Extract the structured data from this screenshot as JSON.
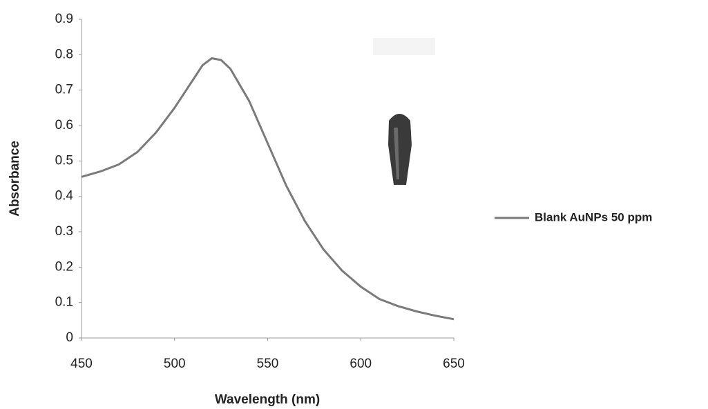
{
  "chart_data": {
    "type": "line",
    "x_label": "Wavelength (nm)",
    "y_label": "Absorbance",
    "x": [
      450,
      460,
      470,
      480,
      490,
      500,
      510,
      515,
      520,
      525,
      530,
      540,
      550,
      560,
      570,
      580,
      590,
      600,
      610,
      620,
      630,
      640,
      650
    ],
    "series": [
      {
        "name": "Blank AuNPs 50 ppm",
        "color": "#7a7a7a",
        "values": [
          0.455,
          0.47,
          0.49,
          0.525,
          0.58,
          0.65,
          0.73,
          0.77,
          0.79,
          0.785,
          0.76,
          0.67,
          0.55,
          0.43,
          0.33,
          0.25,
          0.19,
          0.145,
          0.11,
          0.09,
          0.075,
          0.063,
          0.053
        ]
      }
    ],
    "xlim": [
      450,
      650
    ],
    "xticks": [
      450,
      500,
      550,
      600,
      650
    ],
    "ylim": [
      0,
      0.9
    ],
    "yticks": [
      0,
      0.1,
      0.2,
      0.3,
      0.4,
      0.5,
      0.6,
      0.7,
      0.8,
      0.9
    ],
    "grid": false,
    "legend": "right"
  }
}
